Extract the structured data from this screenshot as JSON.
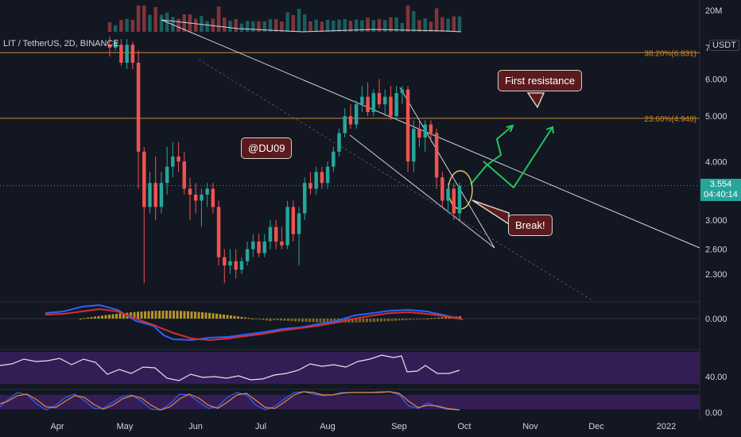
{
  "symbol": "LIT / TetherUS, 2D, BINANCE",
  "unit_badge": "USDT",
  "volume_scale_label": "20M",
  "fib_levels": [
    {
      "label": "38.20%(6.831)",
      "price": 6.831
    },
    {
      "label": "23.60%(4.948)",
      "price": 4.948
    }
  ],
  "price_tag": {
    "price": "3.554",
    "countdown": "04:40:14"
  },
  "annotations": {
    "watermark": "@DU09",
    "first_resistance": "First resistance",
    "break": "Break!"
  },
  "colors": {
    "background": "#131722",
    "up": "#26a69a",
    "down": "#ef5350",
    "fib": "#c98a2e",
    "arrow": "#22c55e",
    "callout_bg": "#5b1a1e",
    "macd_line": "#2962ff",
    "signal_line": "#d32f2f",
    "rsi_band": "#3b1f5e"
  },
  "chart_data": {
    "type": "candlestick",
    "price_axis": {
      "scale": "log",
      "ticks": [
        "7",
        "6.000",
        "5.000",
        "4.000",
        "3.000",
        "2.600",
        "2.300"
      ],
      "tick_values": [
        7,
        6,
        5,
        4,
        3,
        2.6,
        2.3
      ]
    },
    "time_axis": {
      "ticks": [
        "Apr",
        "May",
        "Jun",
        "Jul",
        "Aug",
        "Sep",
        "Oct",
        "Nov",
        "Dec",
        "2022"
      ]
    },
    "last_price": 3.554,
    "candles": [
      {
        "o": 7.1,
        "h": 7.4,
        "l": 6.7,
        "c": 7.0
      },
      {
        "o": 7.0,
        "h": 7.3,
        "l": 6.9,
        "c": 7.2
      },
      {
        "o": 7.1,
        "h": 7.3,
        "l": 6.4,
        "c": 6.5
      },
      {
        "o": 6.5,
        "h": 7.3,
        "l": 6.3,
        "c": 7.1
      },
      {
        "o": 7.1,
        "h": 7.2,
        "l": 6.3,
        "c": 6.5
      },
      {
        "o": 6.5,
        "h": 6.9,
        "l": 3.5,
        "c": 4.2
      },
      {
        "o": 4.2,
        "h": 4.3,
        "l": 2.2,
        "c": 3.2
      },
      {
        "o": 3.2,
        "h": 3.8,
        "l": 3.1,
        "c": 3.6
      },
      {
        "o": 3.6,
        "h": 4.1,
        "l": 3.0,
        "c": 3.2
      },
      {
        "o": 3.2,
        "h": 3.8,
        "l": 3.1,
        "c": 3.6
      },
      {
        "o": 3.6,
        "h": 4.3,
        "l": 3.4,
        "c": 3.9
      },
      {
        "o": 3.9,
        "h": 4.4,
        "l": 3.7,
        "c": 4.1
      },
      {
        "o": 4.1,
        "h": 4.4,
        "l": 3.8,
        "c": 4.0
      },
      {
        "o": 4.0,
        "h": 4.2,
        "l": 3.4,
        "c": 3.5
      },
      {
        "o": 3.5,
        "h": 3.7,
        "l": 3.0,
        "c": 3.4
      },
      {
        "o": 3.4,
        "h": 3.6,
        "l": 3.1,
        "c": 3.3
      },
      {
        "o": 3.3,
        "h": 3.5,
        "l": 2.9,
        "c": 3.4
      },
      {
        "o": 3.4,
        "h": 3.6,
        "l": 3.2,
        "c": 3.5
      },
      {
        "o": 3.5,
        "h": 3.6,
        "l": 3.1,
        "c": 3.2
      },
      {
        "o": 3.2,
        "h": 3.3,
        "l": 2.4,
        "c": 2.5
      },
      {
        "o": 2.5,
        "h": 2.6,
        "l": 2.2,
        "c": 2.4
      },
      {
        "o": 2.4,
        "h": 2.6,
        "l": 2.3,
        "c": 2.45
      },
      {
        "o": 2.45,
        "h": 2.6,
        "l": 2.25,
        "c": 2.35
      },
      {
        "o": 2.35,
        "h": 2.5,
        "l": 2.3,
        "c": 2.45
      },
      {
        "o": 2.45,
        "h": 2.7,
        "l": 2.4,
        "c": 2.6
      },
      {
        "o": 2.6,
        "h": 2.8,
        "l": 2.5,
        "c": 2.7
      },
      {
        "o": 2.7,
        "h": 2.8,
        "l": 2.5,
        "c": 2.55
      },
      {
        "o": 2.55,
        "h": 2.8,
        "l": 2.5,
        "c": 2.7
      },
      {
        "o": 2.7,
        "h": 3.0,
        "l": 2.6,
        "c": 2.9
      },
      {
        "o": 2.9,
        "h": 3.0,
        "l": 2.6,
        "c": 2.7
      },
      {
        "o": 2.7,
        "h": 2.9,
        "l": 2.6,
        "c": 2.65
      },
      {
        "o": 2.65,
        "h": 3.3,
        "l": 2.6,
        "c": 3.2
      },
      {
        "o": 3.2,
        "h": 3.3,
        "l": 2.7,
        "c": 2.8
      },
      {
        "o": 2.8,
        "h": 3.2,
        "l": 2.4,
        "c": 3.1
      },
      {
        "o": 3.1,
        "h": 3.7,
        "l": 3.0,
        "c": 3.6
      },
      {
        "o": 3.6,
        "h": 3.8,
        "l": 3.4,
        "c": 3.5
      },
      {
        "o": 3.5,
        "h": 3.9,
        "l": 3.4,
        "c": 3.8
      },
      {
        "o": 3.8,
        "h": 3.9,
        "l": 3.5,
        "c": 3.6
      },
      {
        "o": 3.6,
        "h": 4.0,
        "l": 3.5,
        "c": 3.9
      },
      {
        "o": 3.9,
        "h": 4.3,
        "l": 3.8,
        "c": 4.2
      },
      {
        "o": 4.2,
        "h": 4.7,
        "l": 4.1,
        "c": 4.6
      },
      {
        "o": 4.6,
        "h": 5.2,
        "l": 4.5,
        "c": 5.0
      },
      {
        "o": 5.0,
        "h": 5.3,
        "l": 4.7,
        "c": 4.8
      },
      {
        "o": 4.8,
        "h": 5.4,
        "l": 4.7,
        "c": 5.3
      },
      {
        "o": 5.3,
        "h": 5.8,
        "l": 5.1,
        "c": 5.5
      },
      {
        "o": 5.5,
        "h": 5.9,
        "l": 5.0,
        "c": 5.1
      },
      {
        "o": 5.1,
        "h": 5.7,
        "l": 5.0,
        "c": 5.6
      },
      {
        "o": 5.6,
        "h": 6.0,
        "l": 5.2,
        "c": 5.3
      },
      {
        "o": 5.3,
        "h": 5.7,
        "l": 5.0,
        "c": 5.5
      },
      {
        "o": 5.5,
        "h": 5.8,
        "l": 4.9,
        "c": 5.0
      },
      {
        "o": 5.0,
        "h": 5.8,
        "l": 4.9,
        "c": 5.6
      },
      {
        "o": 5.6,
        "h": 5.8,
        "l": 5.3,
        "c": 5.7
      },
      {
        "o": 5.7,
        "h": 5.8,
        "l": 3.8,
        "c": 4.0
      },
      {
        "o": 4.0,
        "h": 4.9,
        "l": 3.8,
        "c": 4.7
      },
      {
        "o": 4.7,
        "h": 4.9,
        "l": 4.3,
        "c": 4.5
      },
      {
        "o": 4.5,
        "h": 4.9,
        "l": 4.2,
        "c": 4.8
      },
      {
        "o": 4.8,
        "h": 4.9,
        "l": 4.4,
        "c": 4.6
      },
      {
        "o": 4.6,
        "h": 4.7,
        "l": 3.5,
        "c": 3.7
      },
      {
        "o": 3.7,
        "h": 3.8,
        "l": 3.2,
        "c": 3.3
      },
      {
        "o": 3.3,
        "h": 3.6,
        "l": 3.1,
        "c": 3.5
      },
      {
        "o": 3.5,
        "h": 3.6,
        "l": 3.0,
        "c": 3.1
      },
      {
        "o": 3.1,
        "h": 3.6,
        "l": 3.0,
        "c": 3.55
      }
    ],
    "indicators": [
      "Volume",
      "MACD",
      "RSI",
      "Stochastic RSI"
    ],
    "indicator_ticks": {
      "macd": "0.000",
      "rsi": "40.00",
      "stoch_rsi": "0.00"
    }
  }
}
